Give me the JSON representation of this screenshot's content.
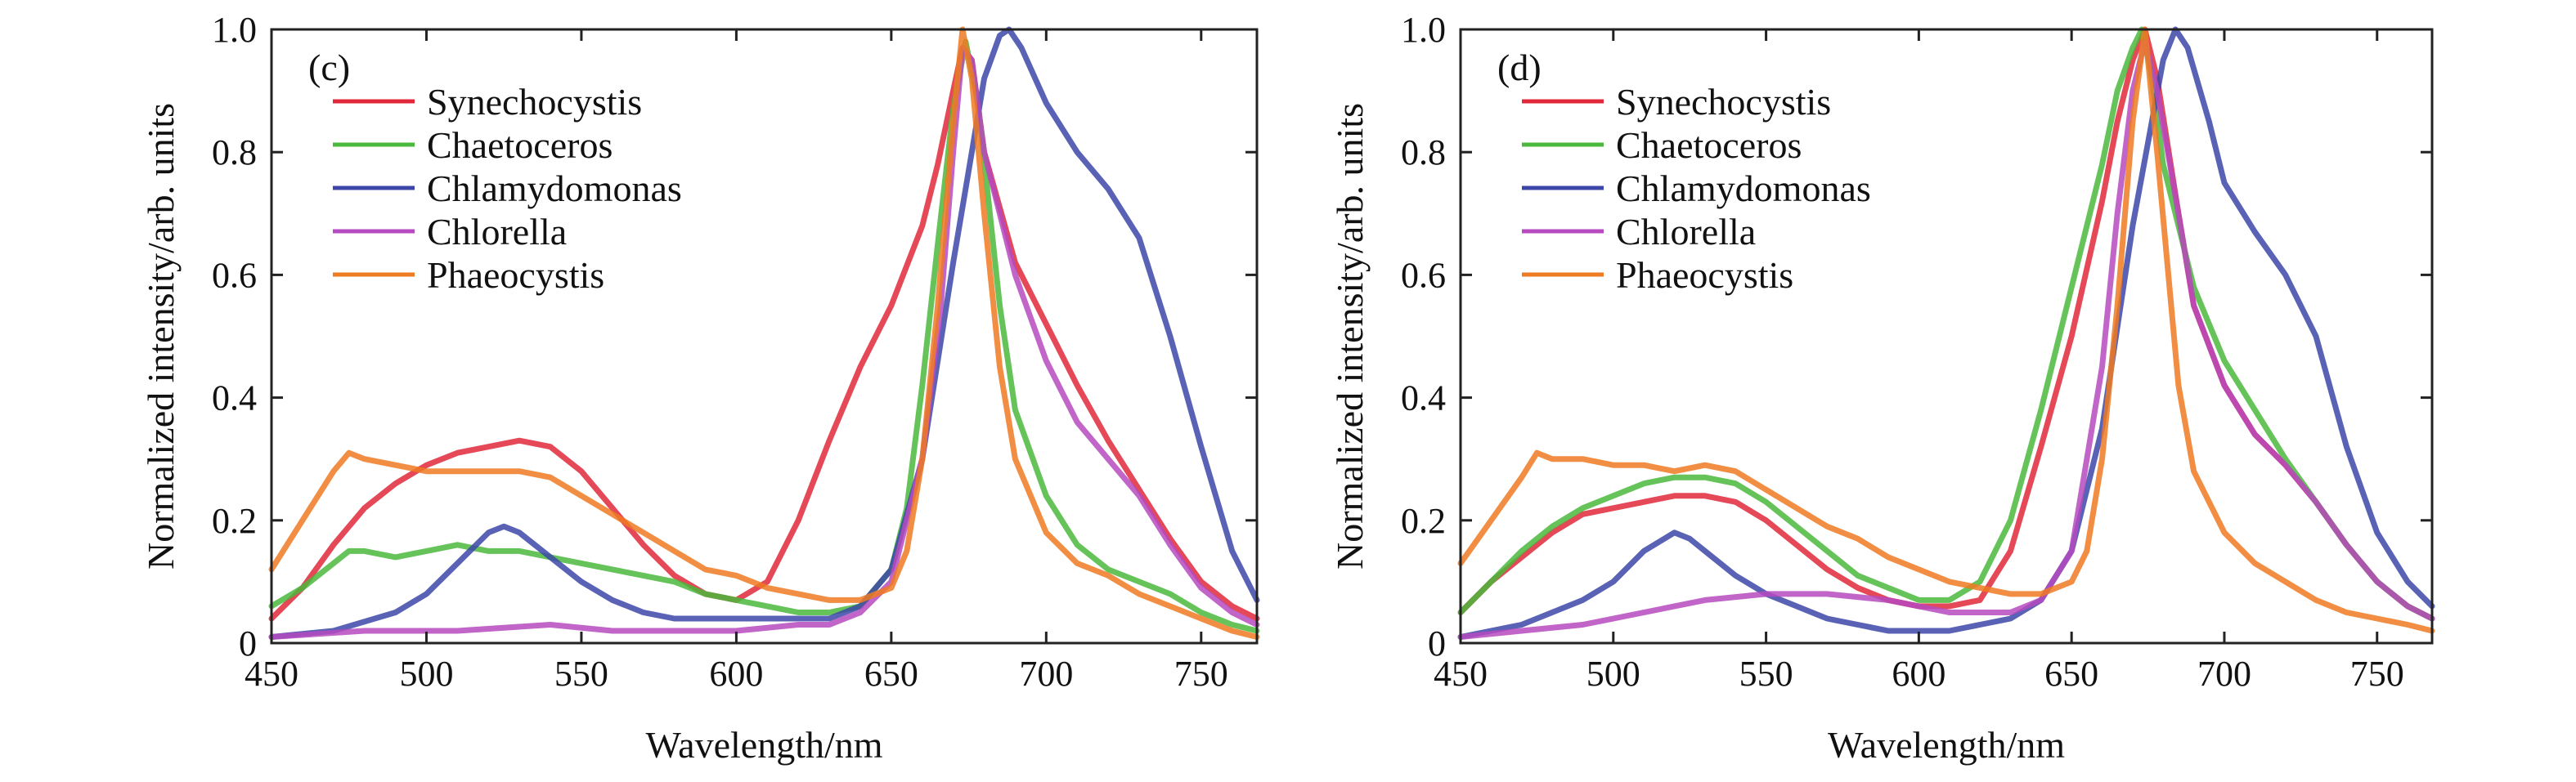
{
  "chart_data": [
    {
      "type": "line",
      "panel_label": "(c)",
      "xlabel": "Wavelength/nm",
      "ylabel": "Normalized intensity/arb. units",
      "xlim": [
        450,
        768
      ],
      "ylim": [
        0,
        1.0
      ],
      "xticks": [
        450,
        500,
        550,
        600,
        650,
        700,
        750
      ],
      "yticks": [
        0,
        0.2,
        0.4,
        0.6,
        0.8,
        1.0
      ],
      "ytick_labels": [
        "0",
        "0.2",
        "0.4",
        "0.6",
        "0.8",
        "1.0"
      ],
      "legend_position": "top-left",
      "series": [
        {
          "name": "Synechocystis",
          "color": "#e0283a",
          "x": [
            450,
            460,
            470,
            480,
            490,
            500,
            510,
            520,
            530,
            540,
            550,
            560,
            570,
            580,
            590,
            600,
            610,
            620,
            630,
            640,
            650,
            660,
            665,
            670,
            673,
            676,
            680,
            690,
            700,
            710,
            720,
            730,
            740,
            750,
            760,
            768
          ],
          "y": [
            0.04,
            0.09,
            0.16,
            0.22,
            0.26,
            0.29,
            0.31,
            0.32,
            0.33,
            0.32,
            0.28,
            0.22,
            0.16,
            0.11,
            0.08,
            0.07,
            0.1,
            0.2,
            0.33,
            0.45,
            0.55,
            0.68,
            0.78,
            0.9,
            0.97,
            0.95,
            0.8,
            0.62,
            0.52,
            0.42,
            0.33,
            0.25,
            0.17,
            0.1,
            0.06,
            0.04
          ]
        },
        {
          "name": "Chaetoceros",
          "color": "#4ab83c",
          "x": [
            450,
            460,
            470,
            475,
            480,
            490,
            500,
            510,
            520,
            530,
            540,
            550,
            560,
            570,
            580,
            590,
            600,
            610,
            620,
            630,
            640,
            650,
            655,
            660,
            665,
            670,
            674,
            678,
            685,
            690,
            700,
            710,
            720,
            730,
            740,
            750,
            760,
            768
          ],
          "y": [
            0.06,
            0.09,
            0.13,
            0.15,
            0.15,
            0.14,
            0.15,
            0.16,
            0.15,
            0.15,
            0.14,
            0.13,
            0.12,
            0.11,
            0.1,
            0.08,
            0.07,
            0.06,
            0.05,
            0.05,
            0.06,
            0.12,
            0.22,
            0.42,
            0.65,
            0.87,
            0.98,
            0.88,
            0.55,
            0.38,
            0.24,
            0.16,
            0.12,
            0.1,
            0.08,
            0.05,
            0.03,
            0.02
          ]
        },
        {
          "name": "Chlamydomonas",
          "color": "#3c46a8",
          "x": [
            450,
            470,
            490,
            500,
            510,
            520,
            525,
            530,
            540,
            550,
            560,
            570,
            580,
            590,
            600,
            610,
            620,
            630,
            640,
            650,
            660,
            670,
            680,
            685,
            688,
            692,
            700,
            710,
            720,
            730,
            740,
            750,
            760,
            768
          ],
          "y": [
            0.01,
            0.02,
            0.05,
            0.08,
            0.13,
            0.18,
            0.19,
            0.18,
            0.14,
            0.1,
            0.07,
            0.05,
            0.04,
            0.04,
            0.04,
            0.04,
            0.04,
            0.04,
            0.06,
            0.12,
            0.3,
            0.62,
            0.92,
            0.99,
            1.0,
            0.97,
            0.88,
            0.8,
            0.74,
            0.66,
            0.5,
            0.32,
            0.15,
            0.07
          ]
        },
        {
          "name": "Chlorella",
          "color": "#b64ac0",
          "x": [
            450,
            480,
            510,
            540,
            560,
            580,
            600,
            620,
            630,
            640,
            650,
            660,
            666,
            670,
            673,
            676,
            680,
            690,
            700,
            710,
            720,
            730,
            740,
            750,
            760,
            768
          ],
          "y": [
            0.01,
            0.02,
            0.02,
            0.03,
            0.02,
            0.02,
            0.02,
            0.03,
            0.03,
            0.05,
            0.1,
            0.3,
            0.55,
            0.8,
            0.97,
            0.95,
            0.8,
            0.6,
            0.46,
            0.36,
            0.3,
            0.24,
            0.16,
            0.09,
            0.05,
            0.03
          ]
        },
        {
          "name": "Phaeocystis",
          "color": "#ee7a22",
          "x": [
            450,
            460,
            470,
            475,
            480,
            490,
            500,
            510,
            520,
            530,
            540,
            550,
            560,
            570,
            580,
            590,
            600,
            610,
            620,
            630,
            640,
            650,
            655,
            660,
            665,
            670,
            673,
            676,
            680,
            685,
            690,
            700,
            710,
            720,
            730,
            740,
            750,
            760,
            768
          ],
          "y": [
            0.12,
            0.2,
            0.28,
            0.31,
            0.3,
            0.29,
            0.28,
            0.28,
            0.28,
            0.28,
            0.27,
            0.24,
            0.21,
            0.18,
            0.15,
            0.12,
            0.11,
            0.09,
            0.08,
            0.07,
            0.07,
            0.09,
            0.15,
            0.3,
            0.55,
            0.85,
            1.0,
            0.92,
            0.7,
            0.45,
            0.3,
            0.18,
            0.13,
            0.11,
            0.08,
            0.06,
            0.04,
            0.02,
            0.01
          ]
        }
      ]
    },
    {
      "type": "line",
      "panel_label": "(d)",
      "xlabel": "Wavelength/nm",
      "ylabel": "Normalized intensity/arb. units",
      "xlim": [
        450,
        768
      ],
      "ylim": [
        0,
        1.0
      ],
      "xticks": [
        450,
        500,
        550,
        600,
        650,
        700,
        750
      ],
      "yticks": [
        0,
        0.2,
        0.4,
        0.6,
        0.8,
        1.0
      ],
      "ytick_labels": [
        "0",
        "0.2",
        "0.4",
        "0.6",
        "0.8",
        "1.0"
      ],
      "legend_position": "top-left",
      "series": [
        {
          "name": "Synechocystis",
          "color": "#e0283a",
          "x": [
            450,
            460,
            470,
            480,
            490,
            500,
            510,
            520,
            530,
            540,
            550,
            560,
            570,
            580,
            590,
            600,
            610,
            620,
            630,
            640,
            650,
            660,
            665,
            670,
            674,
            678,
            685,
            690,
            700,
            710,
            720,
            730,
            740,
            750,
            760,
            768
          ],
          "y": [
            0.05,
            0.1,
            0.14,
            0.18,
            0.21,
            0.22,
            0.23,
            0.24,
            0.24,
            0.23,
            0.2,
            0.16,
            0.12,
            0.09,
            0.07,
            0.06,
            0.06,
            0.07,
            0.15,
            0.32,
            0.5,
            0.72,
            0.85,
            0.95,
            1.0,
            0.92,
            0.7,
            0.55,
            0.42,
            0.34,
            0.29,
            0.23,
            0.16,
            0.1,
            0.06,
            0.04
          ]
        },
        {
          "name": "Chaetoceros",
          "color": "#4ab83c",
          "x": [
            450,
            460,
            470,
            480,
            490,
            500,
            510,
            520,
            530,
            540,
            550,
            560,
            570,
            580,
            590,
            600,
            610,
            620,
            630,
            640,
            650,
            660,
            665,
            670,
            673,
            676,
            680,
            690,
            700,
            710,
            720,
            730,
            740,
            750,
            760,
            768
          ],
          "y": [
            0.05,
            0.1,
            0.15,
            0.19,
            0.22,
            0.24,
            0.26,
            0.27,
            0.27,
            0.26,
            0.23,
            0.19,
            0.15,
            0.11,
            0.09,
            0.07,
            0.07,
            0.1,
            0.2,
            0.38,
            0.58,
            0.78,
            0.9,
            0.97,
            1.0,
            0.93,
            0.78,
            0.58,
            0.46,
            0.38,
            0.3,
            0.23,
            0.16,
            0.1,
            0.06,
            0.04
          ]
        },
        {
          "name": "Chlamydomonas",
          "color": "#3c46a8",
          "x": [
            450,
            470,
            490,
            500,
            510,
            520,
            525,
            530,
            540,
            550,
            560,
            570,
            580,
            590,
            600,
            610,
            620,
            630,
            640,
            650,
            660,
            670,
            680,
            684,
            688,
            695,
            700,
            710,
            720,
            730,
            740,
            750,
            760,
            768
          ],
          "y": [
            0.01,
            0.03,
            0.07,
            0.1,
            0.15,
            0.18,
            0.17,
            0.15,
            0.11,
            0.08,
            0.06,
            0.04,
            0.03,
            0.02,
            0.02,
            0.02,
            0.03,
            0.04,
            0.07,
            0.15,
            0.35,
            0.68,
            0.95,
            1.0,
            0.97,
            0.85,
            0.75,
            0.67,
            0.6,
            0.5,
            0.32,
            0.18,
            0.1,
            0.06
          ]
        },
        {
          "name": "Chlorella",
          "color": "#b64ac0",
          "x": [
            450,
            470,
            490,
            510,
            530,
            550,
            570,
            590,
            610,
            630,
            640,
            650,
            660,
            665,
            670,
            674,
            678,
            685,
            690,
            700,
            710,
            720,
            730,
            740,
            750,
            760,
            768
          ],
          "y": [
            0.01,
            0.02,
            0.03,
            0.05,
            0.07,
            0.08,
            0.08,
            0.07,
            0.05,
            0.05,
            0.07,
            0.15,
            0.45,
            0.7,
            0.9,
            0.98,
            0.9,
            0.7,
            0.55,
            0.42,
            0.34,
            0.29,
            0.23,
            0.16,
            0.1,
            0.06,
            0.04
          ]
        },
        {
          "name": "Phaeocystis",
          "color": "#ee7a22",
          "x": [
            450,
            460,
            470,
            475,
            480,
            490,
            500,
            510,
            520,
            530,
            540,
            550,
            560,
            570,
            580,
            590,
            600,
            610,
            620,
            630,
            640,
            650,
            655,
            660,
            665,
            670,
            674,
            678,
            685,
            690,
            700,
            710,
            720,
            730,
            740,
            750,
            760,
            768
          ],
          "y": [
            0.13,
            0.2,
            0.27,
            0.31,
            0.3,
            0.3,
            0.29,
            0.29,
            0.28,
            0.29,
            0.28,
            0.25,
            0.22,
            0.19,
            0.17,
            0.14,
            0.12,
            0.1,
            0.09,
            0.08,
            0.08,
            0.1,
            0.15,
            0.3,
            0.55,
            0.85,
            1.0,
            0.8,
            0.42,
            0.28,
            0.18,
            0.13,
            0.1,
            0.07,
            0.05,
            0.04,
            0.03,
            0.02
          ]
        }
      ]
    }
  ]
}
